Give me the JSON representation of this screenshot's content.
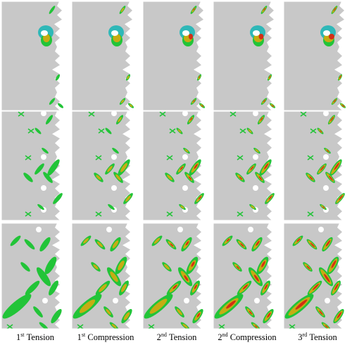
{
  "figure": {
    "columns": [
      {
        "ordinal": "1",
        "suffix": "st",
        "label": "Tension"
      },
      {
        "ordinal": "1",
        "suffix": "st",
        "label": "Compression"
      },
      {
        "ordinal": "2",
        "suffix": "nd",
        "label": "Tension"
      },
      {
        "ordinal": "2",
        "suffix": "nd",
        "label": "Compression"
      },
      {
        "ordinal": "3",
        "suffix": "rd",
        "label": "Tension"
      }
    ],
    "row_count": 3,
    "damage_level_by_column": [
      0.0,
      0.3,
      0.5,
      0.7,
      1.0
    ],
    "colors": {
      "background": "#ffffff",
      "undamaged": "#c8c8c8",
      "panel_border": "#ffffff",
      "low_damage": "#22c438",
      "medium_damage": "#c6ac14",
      "high_damage": "#d42e14",
      "hole_fill": "#ffffff",
      "cyan_edge": "#2fb8b8"
    }
  }
}
